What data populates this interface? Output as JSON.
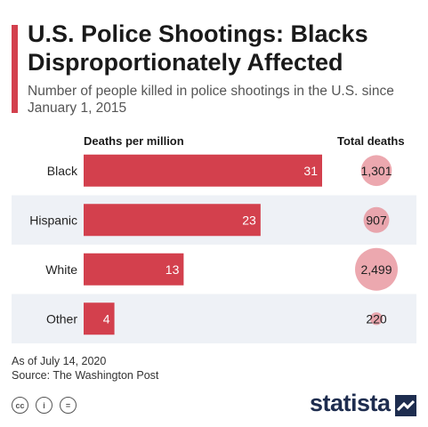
{
  "header": {
    "title": "U.S. Police Shootings: Blacks Disproportionately Affected",
    "subtitle": "Number of people killed in police shootings in the U.S. since January 1, 2015"
  },
  "chart_data": {
    "type": "bar",
    "orientation": "horizontal",
    "categories": [
      "Black",
      "Hispanic",
      "White",
      "Other"
    ],
    "series": [
      {
        "name": "Deaths per million",
        "values": [
          31,
          23,
          13,
          4
        ]
      },
      {
        "name": "Total deaths",
        "values": [
          1301,
          907,
          2499,
          220
        ],
        "labels": [
          "1,301",
          "907",
          "2,499",
          "220"
        ]
      }
    ],
    "title": "U.S. Police Shootings: Blacks Disproportionately Affected",
    "subtitle": "Number of people killed in police shootings in the U.S. since January 1, 2015",
    "xlabel": "",
    "ylabel": "",
    "grid": false,
    "colors": {
      "bar": "#d3404d",
      "bubble": "#e58b94",
      "row_band": "#eef1f6"
    }
  },
  "footer": {
    "note": "As of July 14, 2020",
    "source": "Source: The Washington Post",
    "license_icons": [
      "cc-icon",
      "attribution-icon",
      "no-derivatives-icon"
    ],
    "license_glyphs": [
      "cc",
      "i",
      "="
    ],
    "brand": "statista"
  }
}
